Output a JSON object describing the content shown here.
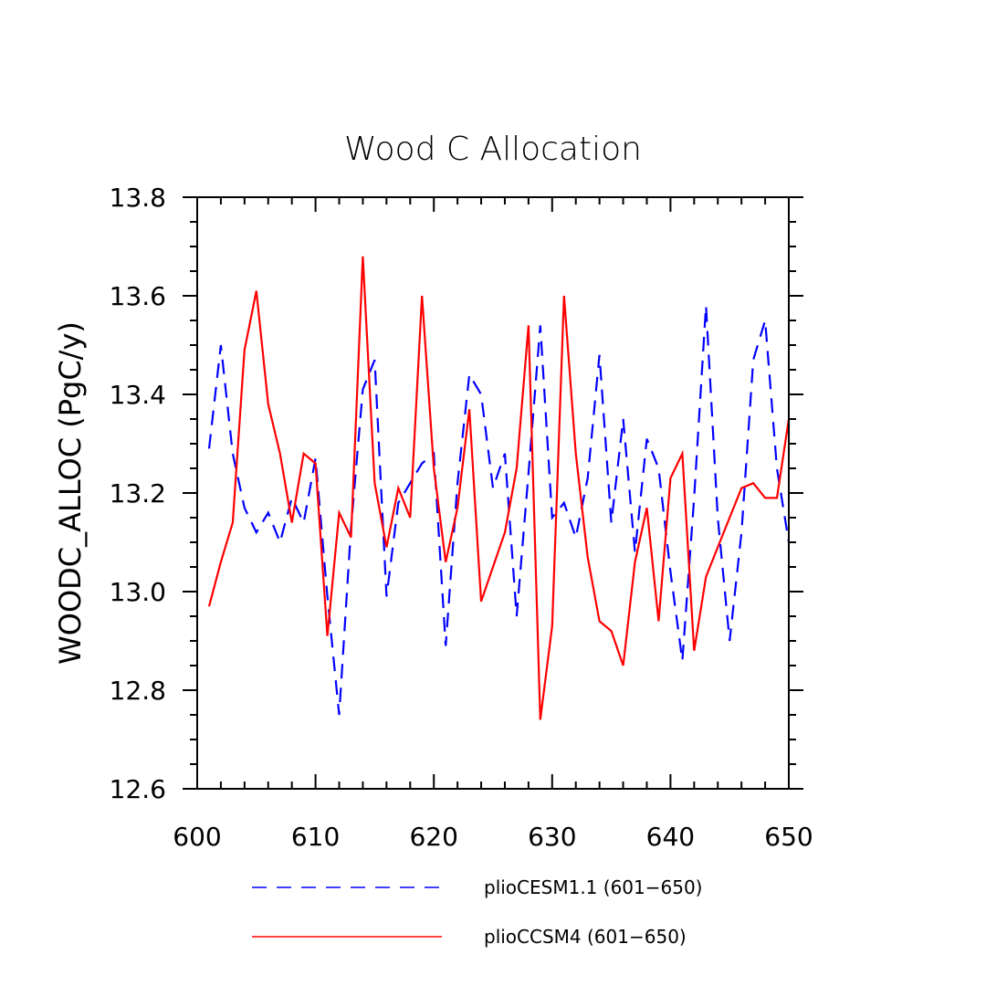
{
  "chart_data": {
    "type": "line",
    "title": "Wood C Allocation",
    "xlabel": "",
    "ylabel": "WOODC_ALLOC  (PgC/y)",
    "xlim": [
      600,
      650
    ],
    "ylim": [
      12.6,
      13.8
    ],
    "x_ticks": [
      600,
      610,
      620,
      630,
      640,
      650
    ],
    "x_tick_labels": [
      "600",
      "610",
      "620",
      "630",
      "640",
      "650"
    ],
    "y_ticks": [
      12.6,
      12.8,
      13.0,
      13.2,
      13.4,
      13.6,
      13.8
    ],
    "y_tick_labels": [
      "12.6",
      "12.8",
      "13.0",
      "13.2",
      "13.4",
      "13.6",
      "13.8"
    ],
    "x_minor_step": 2,
    "y_minor_step": 0.05,
    "grid": false,
    "legend_position": "bottom",
    "x": [
      601,
      602,
      603,
      604,
      605,
      606,
      607,
      608,
      609,
      610,
      611,
      612,
      613,
      614,
      615,
      616,
      617,
      618,
      619,
      620,
      621,
      622,
      623,
      624,
      625,
      626,
      627,
      628,
      629,
      630,
      631,
      632,
      633,
      634,
      635,
      636,
      637,
      638,
      639,
      640,
      641,
      642,
      643,
      644,
      645,
      646,
      647,
      648,
      649,
      650
    ],
    "series": [
      {
        "name": "plioCESM1.1 (601−650)",
        "color": "#0000ff",
        "dash": "dashed",
        "values": [
          13.29,
          13.5,
          13.28,
          13.17,
          13.12,
          13.16,
          13.1,
          13.19,
          13.14,
          13.27,
          12.99,
          12.75,
          13.13,
          13.41,
          13.47,
          12.99,
          13.18,
          13.22,
          13.26,
          13.28,
          12.89,
          13.22,
          13.44,
          13.4,
          13.21,
          13.28,
          12.95,
          13.24,
          13.54,
          13.15,
          13.18,
          13.11,
          13.23,
          13.48,
          13.14,
          13.35,
          13.08,
          13.31,
          13.25,
          13.04,
          12.86,
          13.19,
          13.58,
          13.15,
          12.9,
          13.12,
          13.47,
          13.55,
          13.25,
          13.1
        ]
      },
      {
        "name": "plioCCSM4 (601−650)",
        "color": "#ff0000",
        "dash": "solid",
        "values": [
          12.97,
          13.06,
          13.14,
          13.49,
          13.61,
          13.38,
          13.28,
          13.14,
          13.28,
          13.26,
          12.91,
          13.16,
          13.11,
          13.68,
          13.22,
          13.09,
          13.21,
          13.15,
          13.6,
          13.25,
          13.06,
          13.17,
          13.37,
          12.98,
          13.05,
          13.12,
          13.25,
          13.54,
          12.74,
          12.93,
          13.6,
          13.28,
          13.07,
          12.94,
          12.92,
          12.85,
          13.06,
          13.17,
          12.94,
          13.23,
          13.28,
          12.88,
          13.03,
          13.09,
          13.15,
          13.21,
          13.22,
          13.19,
          13.19,
          13.35
        ]
      }
    ]
  }
}
